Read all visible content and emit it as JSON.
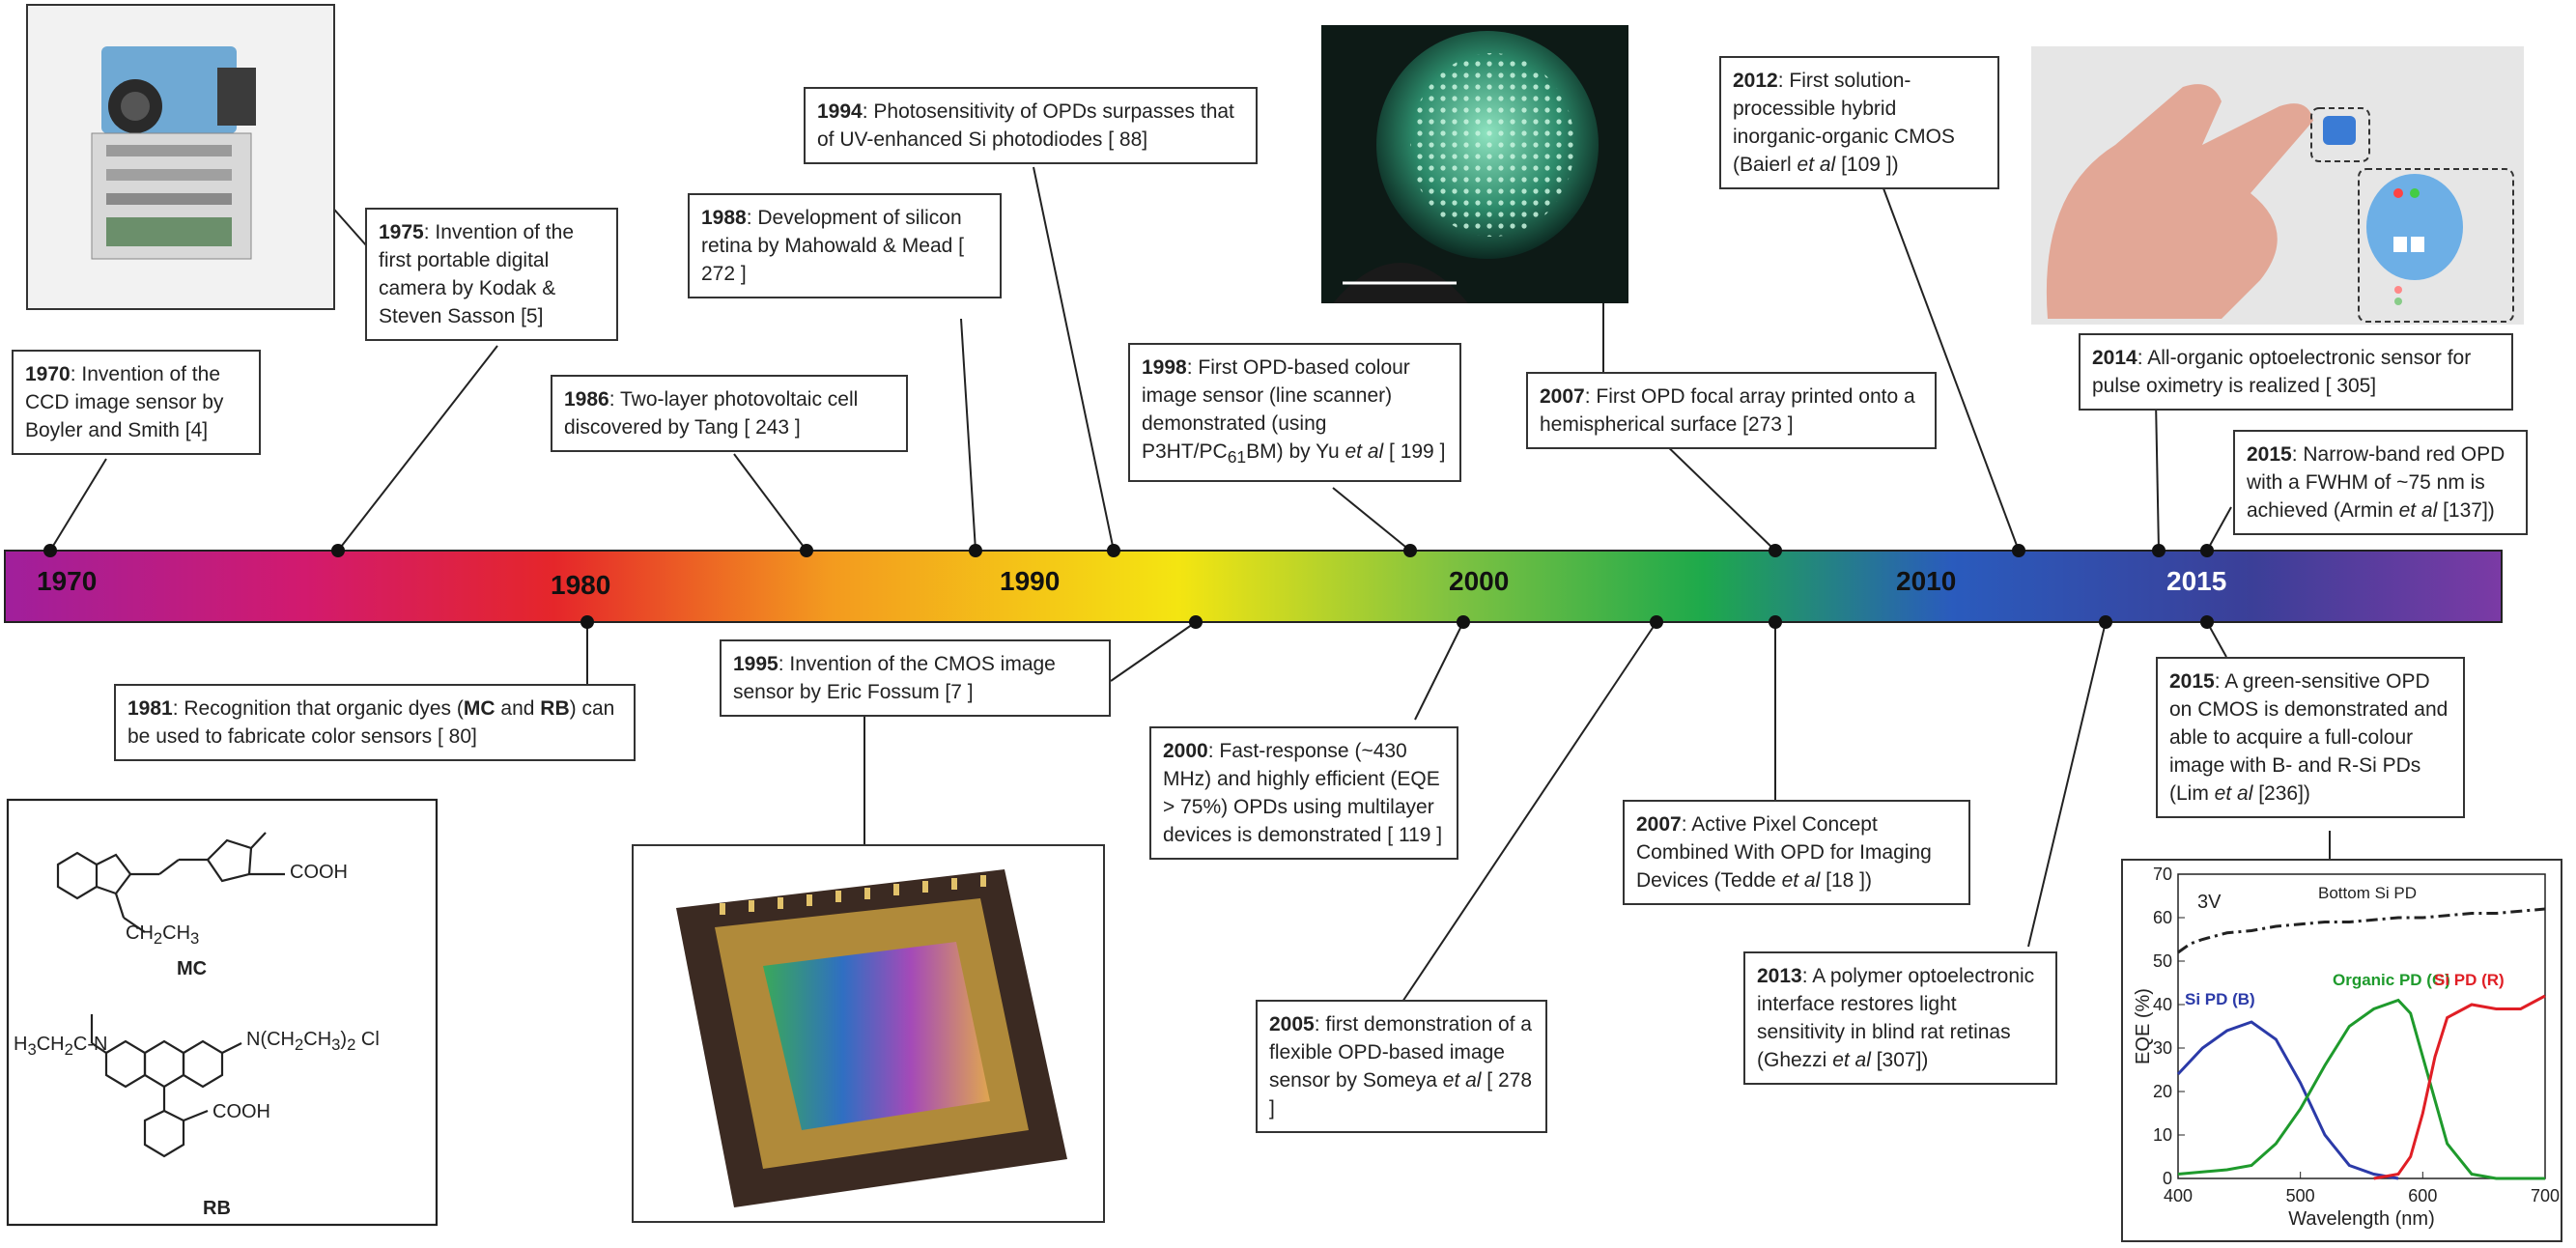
{
  "timeline": {
    "years": [
      "1970",
      "1980",
      "1990",
      "2000",
      "2010",
      "2015"
    ]
  },
  "events": {
    "e1970": {
      "year": "1970",
      "text": ": Invention of the CCD image sensor by Boyler and Smith [4]"
    },
    "e1975": {
      "year": "1975",
      "text": ": Invention of the first portable digital camera by Kodak & Steven Sasson [5]"
    },
    "e1981": {
      "year": "1981",
      "text_a": ": Recognition that organic dyes (",
      "mc": "MC",
      "text_b": " and ",
      "rb": "RB",
      "text_c": ") can be used to fabricate color sensors [ 80]"
    },
    "e1986": {
      "year": "1986",
      "text": ": Two-layer photovoltaic cell discovered by Tang [ 243 ]"
    },
    "e1988": {
      "year": "1988",
      "text": ": Development of silicon retina by Mahowald & Mead [ 272 ]"
    },
    "e1994": {
      "year": "1994",
      "text": ": Photosensitivity of OPDs surpasses that of UV-enhanced Si photodiodes [ 88]"
    },
    "e1995": {
      "year": "1995",
      "text": ": Invention of the CMOS image sensor by Eric Fossum [7 ]"
    },
    "e1998": {
      "year": "1998",
      "text_a": ": First OPD-based colour image sensor (line scanner) demonstrated (using P3HT/PC",
      "sub": "61",
      "text_b": "BM) by Yu ",
      "etal": "et al",
      "text_c": " [ 199 ]"
    },
    "e2000": {
      "year": "2000",
      "text": ": Fast-response (~430 MHz) and highly efficient (EQE > 75%) OPDs using multilayer devices is demonstrated [ 119 ]"
    },
    "e2005": {
      "year": "2005",
      "text_a": ": first demonstration of a flexible OPD-based image sensor by Someya ",
      "etal": "et al",
      "text_b": " [ 278 ]"
    },
    "e2007a": {
      "year": "2007",
      "text": ": First OPD focal array printed onto a  hemispherical surface [273 ]"
    },
    "e2007b": {
      "year": "2007",
      "text_a": ": Active Pixel Concept Combined With OPD for Imaging Devices (Tedde ",
      "etal": "et al",
      "text_b": " [18 ])"
    },
    "e2012": {
      "year": "2012",
      "text_a": ": First solution-processible hybrid inorganic-organic CMOS (Baierl ",
      "etal": "et al",
      "text_b": " [109 ])"
    },
    "e2013": {
      "year": "2013",
      "text_a": ": A polymer optoelectronic interface restores light sensitivity in blind rat retinas (Ghezzi ",
      "etal": "et al",
      "text_b": " [307])"
    },
    "e2014": {
      "year": "2014",
      "text": ": All-organic optoelectronic sensor for pulse oximetry is realized [ 305]"
    },
    "e2015a": {
      "year": "2015",
      "text_a": ": Narrow-band red OPD with a FWHM of ~75 nm is achieved (Armin ",
      "etal": "et al",
      "text_b": " [137])"
    },
    "e2015b": {
      "year": "2015",
      "text_a": ": A green-sensitive OPD on CMOS is demonstrated and able to acquire a full-colour image with B- and R-Si PDs (Lim ",
      "etal": "et al",
      "text_b": " [236])"
    }
  },
  "chemistry": {
    "mc_label": "MC",
    "rb_label": "RB",
    "cooh": "COOH",
    "ch2ch3": "CH",
    "rb_left": "H",
    "rb_right": "N(CH",
    "cl": "Cl"
  },
  "colors": {
    "gradient": [
      "#a01f9c",
      "#d21a6e",
      "#e5262a",
      "#f39a1f",
      "#f4e511",
      "#7fc241",
      "#1ea94b",
      "#2a5bbd",
      "#3b3f98",
      "#7b3aa5"
    ],
    "blue_series": "#2b3aa8",
    "green_series": "#1e9a2c",
    "red_series": "#e01e25",
    "black_series": "#222222"
  },
  "chart_data": {
    "type": "line",
    "xlabel": "Wavelength (nm)",
    "ylabel": "EQE (%)",
    "xlim": [
      400,
      700
    ],
    "ylim": [
      0,
      70
    ],
    "xticks": [
      400,
      500,
      600,
      700
    ],
    "yticks": [
      0,
      10,
      20,
      30,
      40,
      50,
      60,
      70
    ],
    "annotation": "3V",
    "grid": false,
    "series": [
      {
        "name": "Bottom Si PD",
        "style": "dash-dot",
        "color": "#222222",
        "x": [
          400,
          410,
          420,
          440,
          460,
          480,
          500,
          520,
          540,
          560,
          580,
          600,
          620,
          640,
          660,
          680,
          700
        ],
        "y": [
          52,
          54,
          55,
          56.5,
          57,
          58,
          58.5,
          59,
          59,
          59.5,
          60,
          60,
          60.5,
          61,
          61,
          61.5,
          62
        ]
      },
      {
        "name": "Si PD (B)",
        "color": "#2b3aa8",
        "x": [
          400,
          420,
          440,
          460,
          480,
          500,
          520,
          540,
          560,
          580
        ],
        "y": [
          24,
          30,
          34,
          36,
          32,
          22,
          10,
          3,
          1,
          0
        ]
      },
      {
        "name": "Organic PD (G)",
        "color": "#1e9a2c",
        "x": [
          400,
          440,
          460,
          480,
          500,
          520,
          540,
          560,
          580,
          590,
          600,
          620,
          640,
          660,
          700
        ],
        "y": [
          1,
          2,
          3,
          8,
          16,
          26,
          35,
          39,
          41,
          38,
          28,
          8,
          1,
          0,
          0
        ]
      },
      {
        "name": "Si PD (R)",
        "color": "#e01e25",
        "x": [
          560,
          580,
          590,
          600,
          610,
          620,
          640,
          660,
          680,
          700
        ],
        "y": [
          0,
          1,
          5,
          15,
          28,
          37,
          40,
          39,
          39,
          42
        ]
      }
    ]
  }
}
